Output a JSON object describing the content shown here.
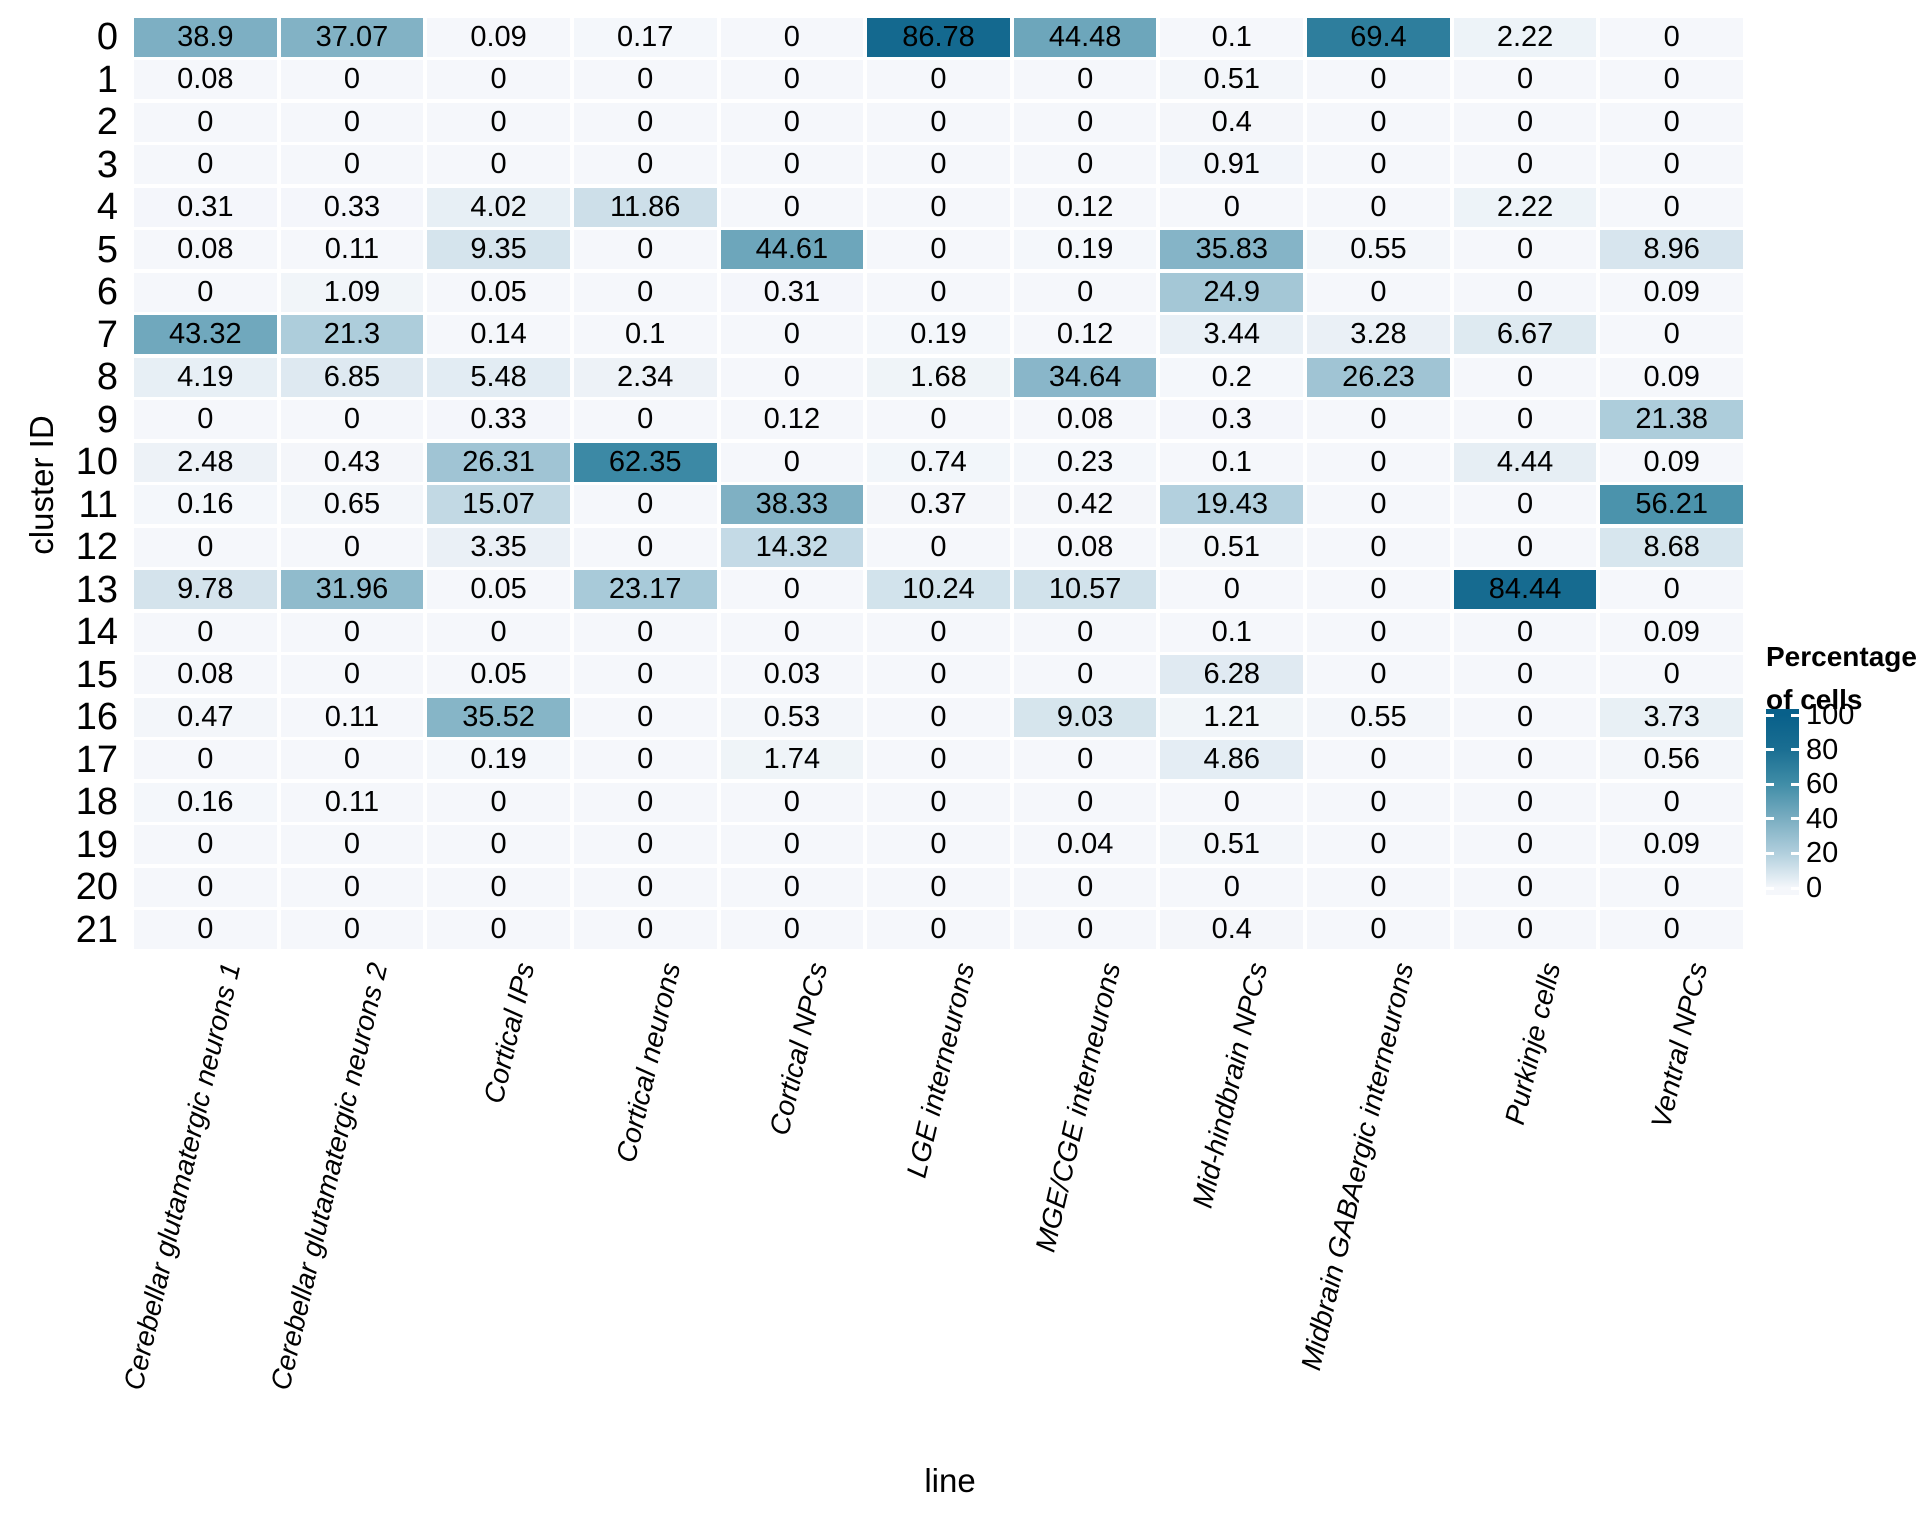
{
  "figure": {
    "x_axis_title": "line",
    "y_axis_title": "cluster ID"
  },
  "legend": {
    "title_line1": "Percentage",
    "title_line2": "of cells",
    "ticks": [
      100,
      80,
      60,
      40,
      20,
      0
    ]
  },
  "chart_data": {
    "type": "heatmap",
    "title": "",
    "xlabel": "line",
    "ylabel": "cluster ID",
    "legend_title": "Percentage of cells",
    "colorbar_range": [
      0,
      100
    ],
    "colorbar_ticks": [
      0,
      20,
      40,
      60,
      80,
      100
    ],
    "colorscale": [
      {
        "value": 0,
        "color": "#f5f7fb"
      },
      {
        "value": 20,
        "color": "#b1cfdd"
      },
      {
        "value": 40,
        "color": "#7aadc1"
      },
      {
        "value": 60,
        "color": "#408da7"
      },
      {
        "value": 80,
        "color": "#1a6e92"
      },
      {
        "value": 100,
        "color": "#08608a"
      }
    ],
    "columns": [
      "Cerebellar glutamatergic neurons 1",
      "Cerebellar glutamatergic neurons 2",
      "Cortical IPs",
      "Cortical neurons",
      "Cortical NPCs",
      "LGE interneurons",
      "MGE/CGE interneurons",
      "Mid-hindbrain NPCs",
      "Midbrain GABAergic interneurons",
      "Purkinje cells",
      "Ventral NPCs"
    ],
    "rows": [
      "0",
      "1",
      "2",
      "3",
      "4",
      "5",
      "6",
      "7",
      "8",
      "9",
      "10",
      "11",
      "12",
      "13",
      "14",
      "15",
      "16",
      "17",
      "18",
      "19",
      "20",
      "21"
    ],
    "values": [
      [
        "38.9",
        "37.07",
        "0.09",
        "0.17",
        "0",
        "86.78",
        "44.48",
        "0.1",
        "69.4",
        "2.22",
        "0"
      ],
      [
        "0.08",
        "0",
        "0",
        "0",
        "0",
        "0",
        "0",
        "0.51",
        "0",
        "0",
        "0"
      ],
      [
        "0",
        "0",
        "0",
        "0",
        "0",
        "0",
        "0",
        "0.4",
        "0",
        "0",
        "0"
      ],
      [
        "0",
        "0",
        "0",
        "0",
        "0",
        "0",
        "0",
        "0.91",
        "0",
        "0",
        "0"
      ],
      [
        "0.31",
        "0.33",
        "4.02",
        "11.86",
        "0",
        "0",
        "0.12",
        "0",
        "0",
        "2.22",
        "0"
      ],
      [
        "0.08",
        "0.11",
        "9.35",
        "0",
        "44.61",
        "0",
        "0.19",
        "35.83",
        "0.55",
        "0",
        "8.96"
      ],
      [
        "0",
        "1.09",
        "0.05",
        "0",
        "0.31",
        "0",
        "0",
        "24.9",
        "0",
        "0",
        "0.09"
      ],
      [
        "43.32",
        "21.3",
        "0.14",
        "0.1",
        "0",
        "0.19",
        "0.12",
        "3.44",
        "3.28",
        "6.67",
        "0"
      ],
      [
        "4.19",
        "6.85",
        "5.48",
        "2.34",
        "0",
        "1.68",
        "34.64",
        "0.2",
        "26.23",
        "0",
        "0.09"
      ],
      [
        "0",
        "0",
        "0.33",
        "0",
        "0.12",
        "0",
        "0.08",
        "0.3",
        "0",
        "0",
        "21.38"
      ],
      [
        "2.48",
        "0.43",
        "26.31",
        "62.35",
        "0",
        "0.74",
        "0.23",
        "0.1",
        "0",
        "4.44",
        "0.09"
      ],
      [
        "0.16",
        "0.65",
        "15.07",
        "0",
        "38.33",
        "0.37",
        "0.42",
        "19.43",
        "0",
        "0",
        "56.21"
      ],
      [
        "0",
        "0",
        "3.35",
        "0",
        "14.32",
        "0",
        "0.08",
        "0.51",
        "0",
        "0",
        "8.68"
      ],
      [
        "9.78",
        "31.96",
        "0.05",
        "23.17",
        "0",
        "10.24",
        "10.57",
        "0",
        "0",
        "84.44",
        "0"
      ],
      [
        "0",
        "0",
        "0",
        "0",
        "0",
        "0",
        "0",
        "0.1",
        "0",
        "0",
        "0.09"
      ],
      [
        "0.08",
        "0",
        "0.05",
        "0",
        "0.03",
        "0",
        "0",
        "6.28",
        "0",
        "0",
        "0"
      ],
      [
        "0.47",
        "0.11",
        "35.52",
        "0",
        "0.53",
        "0",
        "9.03",
        "1.21",
        "0.55",
        "0",
        "3.73"
      ],
      [
        "0",
        "0",
        "0.19",
        "0",
        "1.74",
        "0",
        "0",
        "4.86",
        "0",
        "0",
        "0.56"
      ],
      [
        "0.16",
        "0.11",
        "0",
        "0",
        "0",
        "0",
        "0",
        "0",
        "0",
        "0",
        "0"
      ],
      [
        "0",
        "0",
        "0",
        "0",
        "0",
        "0",
        "0.04",
        "0.51",
        "0",
        "0",
        "0.09"
      ],
      [
        "0",
        "0",
        "0",
        "0",
        "0",
        "0",
        "0",
        "0",
        "0",
        "0",
        "0"
      ],
      [
        "0",
        "0",
        "0",
        "0",
        "0",
        "0",
        "0",
        "0.4",
        "0",
        "0",
        "0"
      ]
    ]
  }
}
